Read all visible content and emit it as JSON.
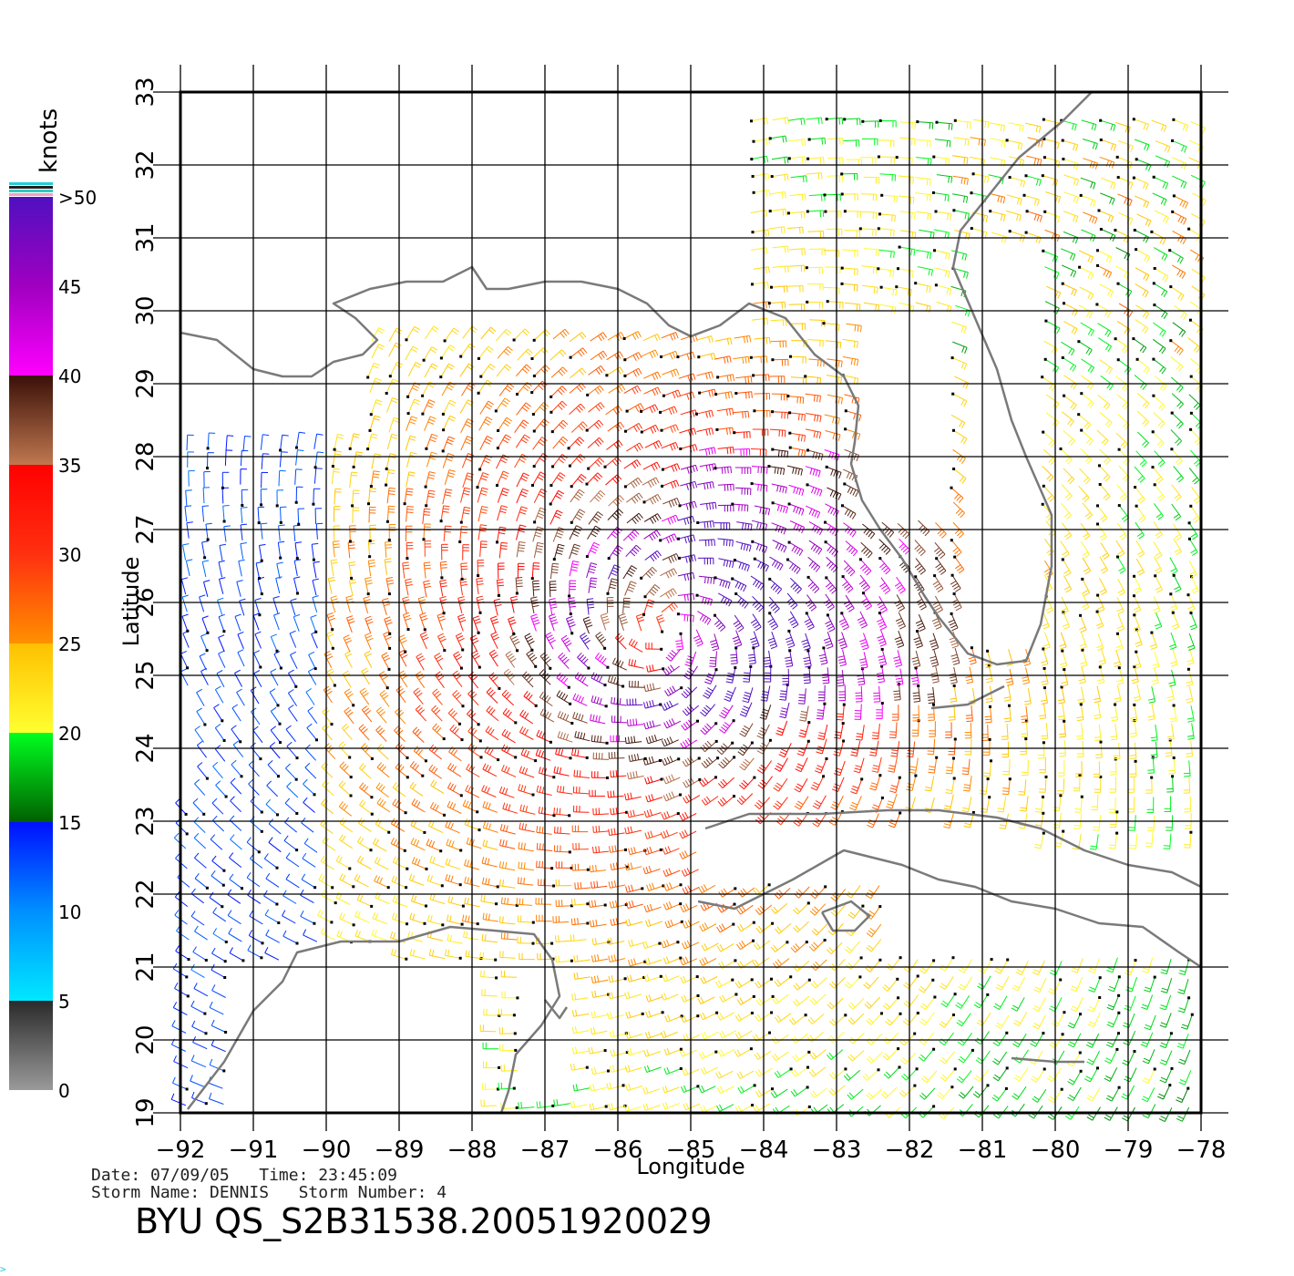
{
  "map": {
    "x_axis_label": "Longitude",
    "y_axis_label": "Latitude",
    "lon_ticks": [
      "−92",
      "−91",
      "−90",
      "−89",
      "−88",
      "−87",
      "−86",
      "−85",
      "−84",
      "−83",
      "−82",
      "−81",
      "−80",
      "−79",
      "−78"
    ],
    "lat_ticks": [
      "19",
      "20",
      "21",
      "22",
      "23",
      "24",
      "25",
      "26",
      "27",
      "28",
      "29",
      "30",
      "31",
      "32",
      "33"
    ],
    "lon_range": [
      -92,
      -78
    ],
    "lat_range": [
      19,
      33
    ],
    "storm_center": {
      "lon": -85.3,
      "lat": 25.6
    },
    "coastline_color": "#7a7a7a",
    "grid_color": "#000000"
  },
  "colorbar": {
    "unit_label": "knots",
    "tick_labels": [
      "0",
      "5",
      "10",
      "15",
      "20",
      "25",
      "30",
      "35",
      "40",
      "45",
      ">50"
    ],
    "stops": [
      {
        "value": 0,
        "color": "#9a9a9a"
      },
      {
        "value": 5,
        "color": "#2a2a2a"
      },
      {
        "value": 5,
        "color": "#00e8ff"
      },
      {
        "value": 10,
        "color": "#0090ff"
      },
      {
        "value": 15,
        "color": "#0010ff"
      },
      {
        "value": 15,
        "color": "#006000"
      },
      {
        "value": 20,
        "color": "#00ff20"
      },
      {
        "value": 20,
        "color": "#ffff30"
      },
      {
        "value": 25,
        "color": "#ffc000"
      },
      {
        "value": 25,
        "color": "#ff9000"
      },
      {
        "value": 30,
        "color": "#ff3010"
      },
      {
        "value": 35,
        "color": "#ff0000"
      },
      {
        "value": 35,
        "color": "#c07850"
      },
      {
        "value": 40,
        "color": "#3a1008"
      },
      {
        "value": 40,
        "color": "#ff00ff"
      },
      {
        "value": 45,
        "color": "#a000c0"
      },
      {
        "value": 50,
        "color": "#5010c0"
      }
    ]
  },
  "footer": {
    "date_line": "Date: 07/09/05   Time: 23:45:09",
    "storm_line": "Storm Name: DENNIS   Storm Number: 4",
    "product_id": "BYU QS_S2B31538.20051920029"
  },
  "corner_mark": ">"
}
